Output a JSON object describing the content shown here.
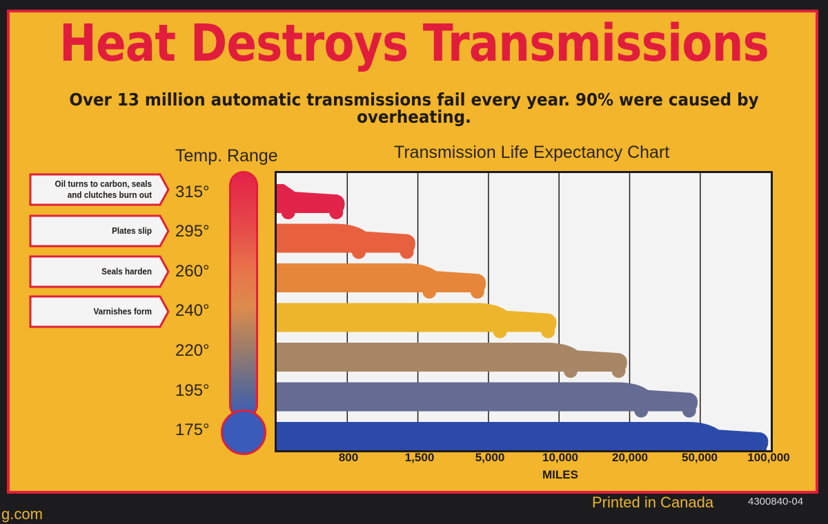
{
  "header": {
    "title": "Heat Destroys Transmissions",
    "subtitle": "Over 13 million automatic transmissions fail every year. 90% were caused by overheating."
  },
  "thermometer": {
    "title": "Temp. Range",
    "gradient_colors": [
      "#e32248",
      "#e8744a",
      "#dc8b4d",
      "#5e6a93",
      "#3a5bb6"
    ]
  },
  "callouts": [
    {
      "text": "Oil turns to carbon, seals and clutches burn out",
      "temp": "315°"
    },
    {
      "text": "Plates slip",
      "temp": "295°"
    },
    {
      "text": "Seals harden",
      "temp": "260°"
    },
    {
      "text": "Varnishes form",
      "temp": "240°"
    }
  ],
  "chart_data": {
    "type": "bar",
    "orientation": "horizontal",
    "title": "Transmission Life Expectancy Chart",
    "xlabel": "MILES",
    "ylabel": "Temp. Range",
    "x_ticks": [
      "800",
      "1,500",
      "5,000",
      "10,000",
      "20,000",
      "50,000",
      "100,000"
    ],
    "categories": [
      "315°",
      "295°",
      "260°",
      "240°",
      "220°",
      "195°",
      "175°"
    ],
    "values": [
      800,
      1500,
      5000,
      10000,
      20000,
      50000,
      100000
    ],
    "bar_colors": [
      "#e2234a",
      "#e8613f",
      "#e5863a",
      "#ecb52c",
      "#a88766",
      "#656b92",
      "#2b4aa9"
    ],
    "bar_shape": "car-icon",
    "grid": true,
    "legend": "none"
  },
  "footer": {
    "printed": "Printed in Canada",
    "code": "4300840-04",
    "url_fragment": "g.com"
  }
}
